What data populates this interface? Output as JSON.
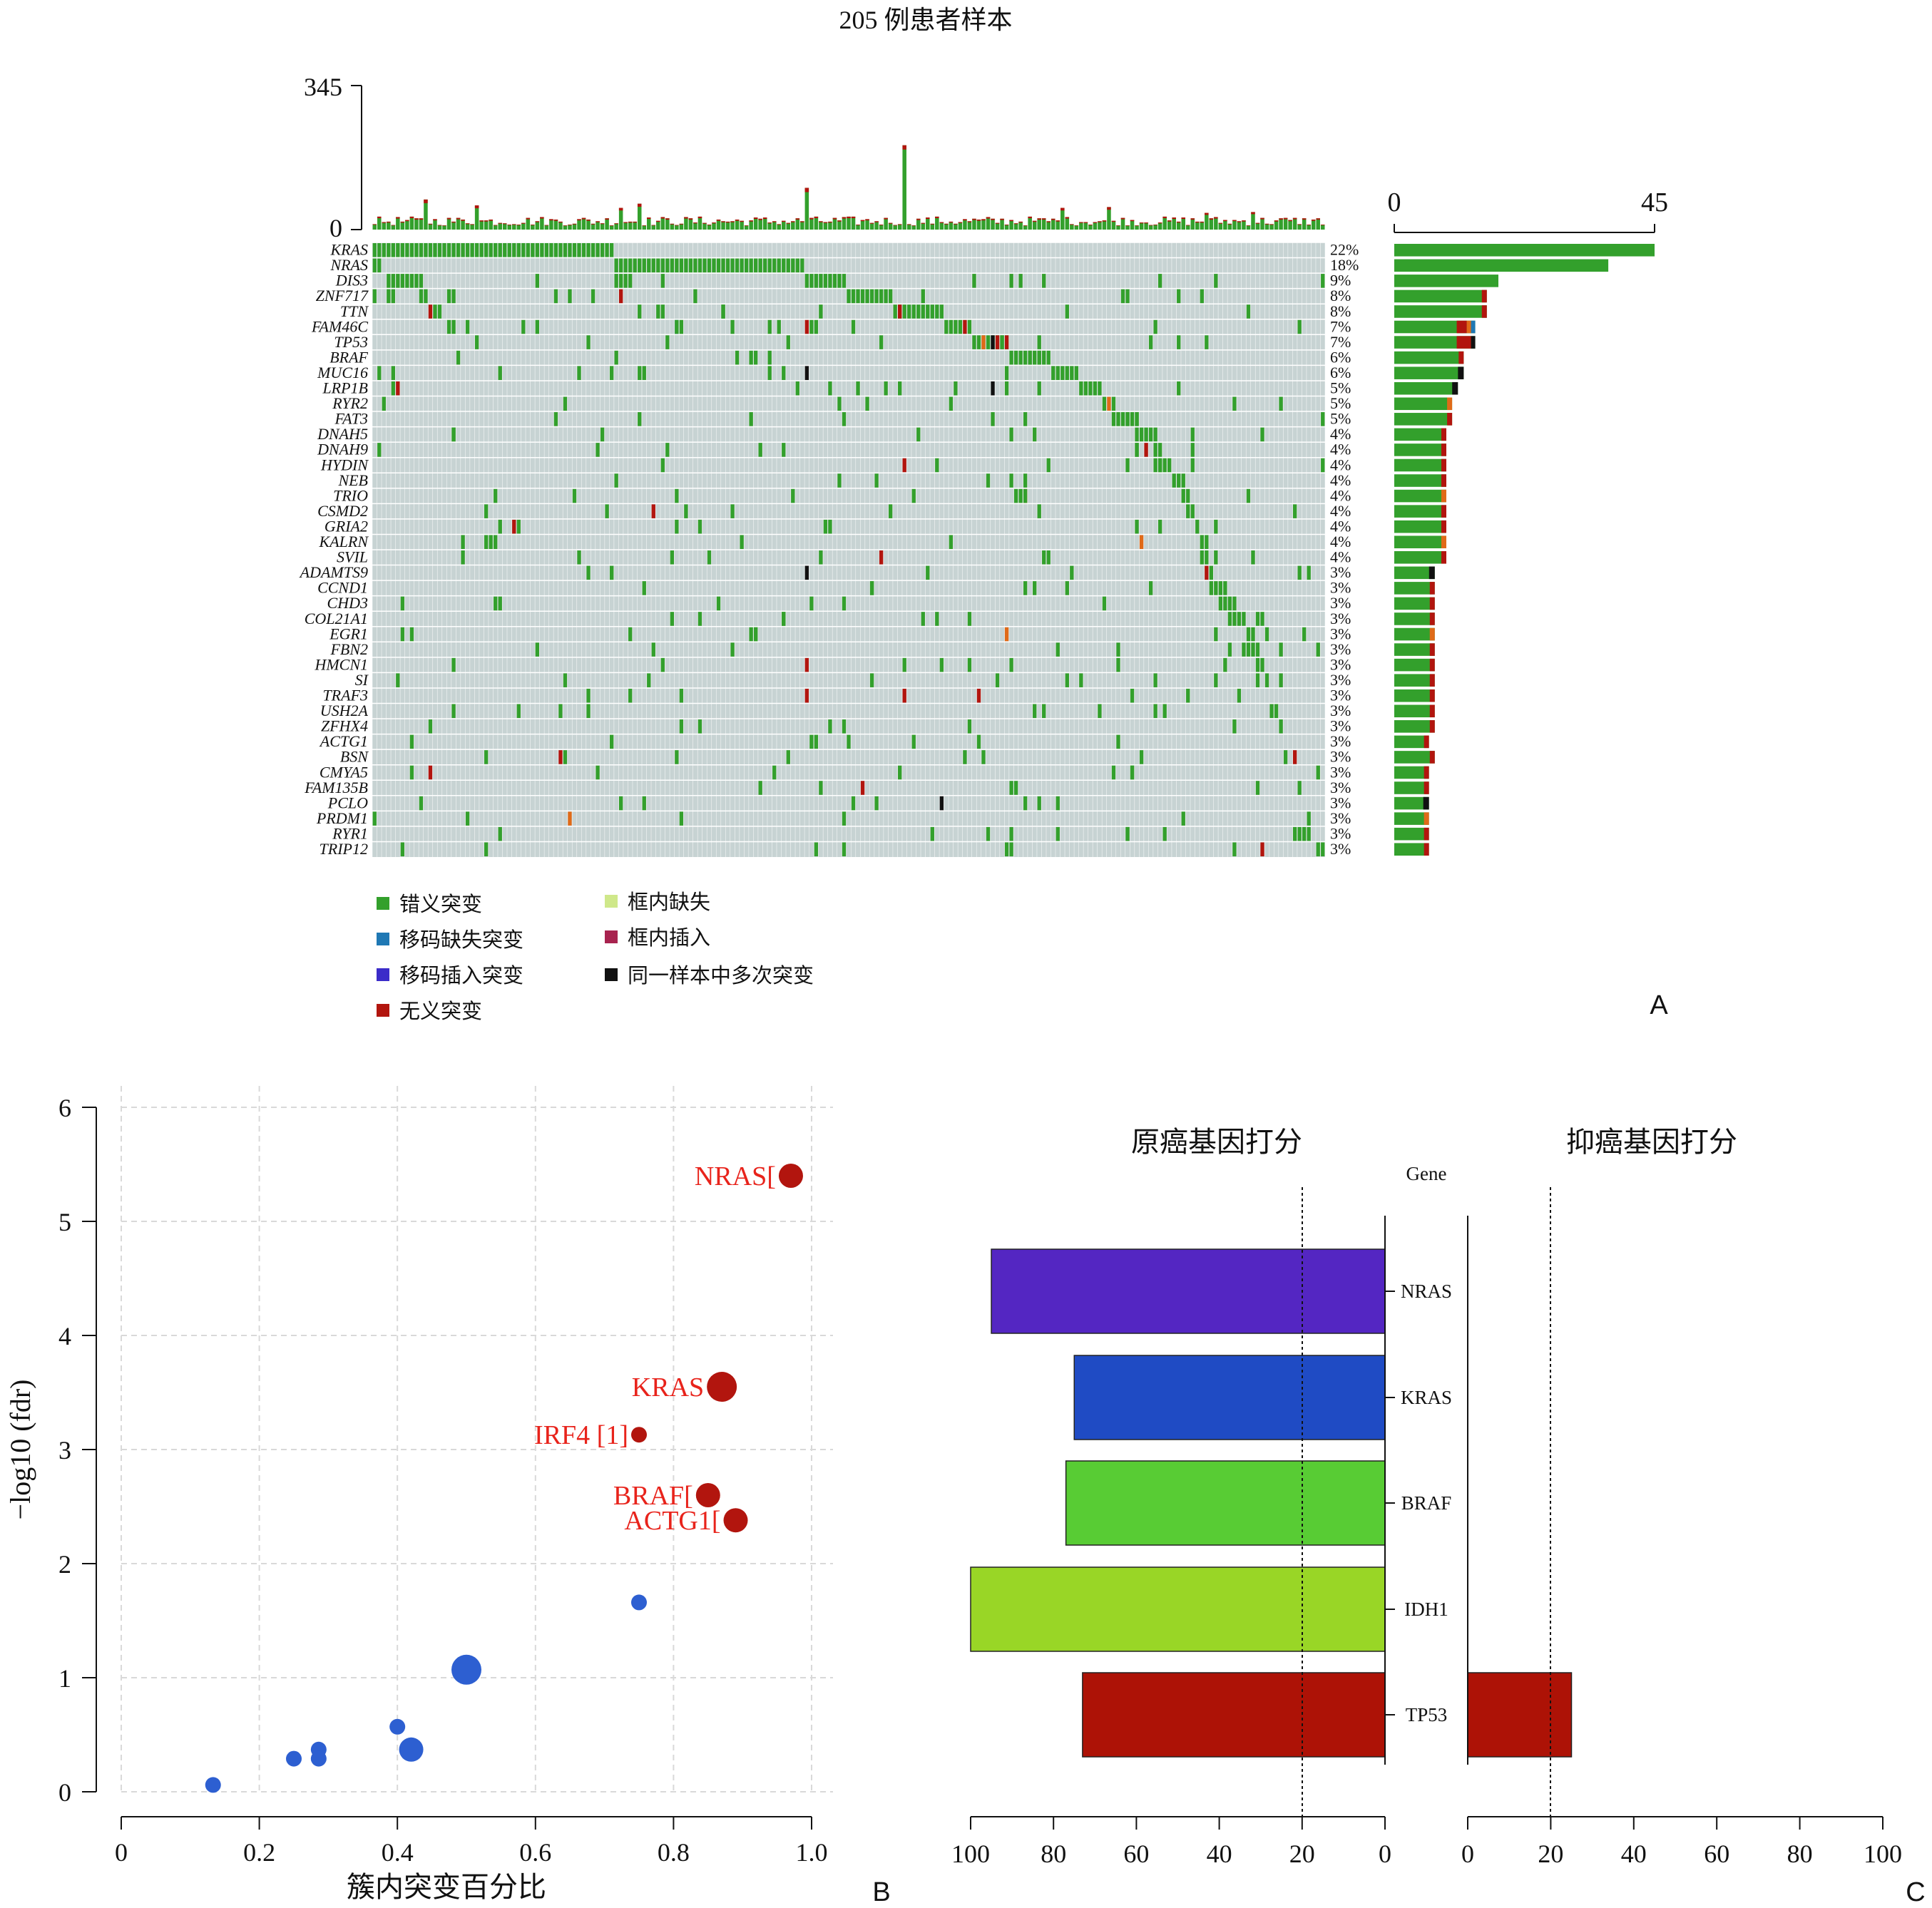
{
  "panel_a": {
    "title": "205 例患者样本",
    "panel_label": "A",
    "top_axis": {
      "max_label": "345",
      "min_label": "0"
    },
    "right_axis": {
      "min_label": "0",
      "max_label": "45"
    },
    "legend": [
      {
        "label": "错义突变",
        "color": "#33a02c"
      },
      {
        "label": "移码缺失突变",
        "color": "#1f78b4"
      },
      {
        "label": "移码插入突变",
        "color": "#3b2cc9"
      },
      {
        "label": "无义突变",
        "color": "#b2150e"
      },
      {
        "label": "框内缺失",
        "color": "#cfe88a"
      },
      {
        "label": "框内插入",
        "color": "#a8234f"
      },
      {
        "label": "同一样本中多次突变",
        "color": "#111111"
      }
    ]
  },
  "panel_b": {
    "panel_label": "B",
    "xlabel": "簇内突变百分比",
    "ylabel": "−log10 (fdr)",
    "xticks": [
      "0",
      "0.2",
      "0.4",
      "0.6",
      "0.8",
      "1.0"
    ],
    "yticks": [
      "0",
      "1",
      "2",
      "3",
      "4",
      "5",
      "6"
    ]
  },
  "panel_c": {
    "panel_label": "C",
    "left_title": "原癌基因打分",
    "right_title": "抑癌基因打分",
    "gene_header": "Gene",
    "left_ticks": [
      "100",
      "80",
      "60",
      "40",
      "20",
      "0"
    ],
    "right_ticks": [
      "0",
      "20",
      "40",
      "60",
      "80",
      "100"
    ]
  },
  "chart_data": [
    {
      "type": "heatmap",
      "title": "205 例患者样本",
      "samples": 205,
      "genes": [
        "KRAS",
        "NRAS",
        "DIS3",
        "ZNF717",
        "TTN",
        "FAM46C",
        "TP53",
        "BRAF",
        "MUC16",
        "LRP1B",
        "RYR2",
        "FAT3",
        "DNAH5",
        "DNAH9",
        "HYDIN",
        "NEB",
        "TRIO",
        "CSMD2",
        "GRIA2",
        "KALRN",
        "SVIL",
        "ADAMTS9",
        "CCND1",
        "CHD3",
        "COL21A1",
        "EGR1",
        "FBN2",
        "HMCN1",
        "SI",
        "TRAF3",
        "USH2A",
        "ZFHX4",
        "ACTG1",
        "BSN",
        "CMYA5",
        "FAM135B",
        "PCLO",
        "PRDM1",
        "RYR1",
        "TRIP12"
      ],
      "percent_labels": [
        "22%",
        "18%",
        "9%",
        "8%",
        "8%",
        "7%",
        "7%",
        "6%",
        "6%",
        "5%",
        "5%",
        "5%",
        "4%",
        "4%",
        "4%",
        "4%",
        "4%",
        "4%",
        "4%",
        "4%",
        "4%",
        "3%",
        "3%",
        "3%",
        "3%",
        "3%",
        "3%",
        "3%",
        "3%",
        "3%",
        "3%",
        "3%",
        "3%",
        "3%",
        "3%",
        "3%",
        "3%",
        "3%",
        "3%",
        "3%"
      ],
      "gene_counts": [
        45,
        37,
        18,
        16,
        16,
        14,
        14,
        12,
        12,
        11,
        10,
        10,
        9,
        9,
        9,
        9,
        9,
        9,
        9,
        9,
        9,
        7,
        7,
        7,
        7,
        7,
        7,
        7,
        7,
        7,
        7,
        7,
        6,
        7,
        6,
        6,
        6,
        6,
        6,
        6
      ],
      "gene_count_axis": [
        0,
        45
      ],
      "tmb_axis": [
        0,
        345
      ]
    },
    {
      "type": "scatter",
      "xlabel": "簇内突变百分比",
      "ylabel": "−log10 (fdr)",
      "xlim": [
        0,
        1.0
      ],
      "ylim": [
        0,
        6
      ],
      "grid": true,
      "points": [
        {
          "x": 0.97,
          "y": 5.4,
          "size": 3,
          "color": "#b2150e",
          "label": "NRAS["
        },
        {
          "x": 0.87,
          "y": 3.55,
          "size": 4,
          "color": "#b2150e",
          "label": "KRAS"
        },
        {
          "x": 0.75,
          "y": 3.13,
          "size": 1,
          "color": "#b2150e",
          "label": "IRF4 [1]"
        },
        {
          "x": 0.85,
          "y": 2.6,
          "size": 3,
          "color": "#b2150e",
          "label": "BRAF["
        },
        {
          "x": 0.89,
          "y": 2.38,
          "size": 3,
          "color": "#b2150e",
          "label": "ACTG1["
        },
        {
          "x": 0.75,
          "y": 1.66,
          "size": 1,
          "color": "#2d5fd1",
          "label": ""
        },
        {
          "x": 0.5,
          "y": 1.07,
          "size": 4,
          "color": "#2d5fd1",
          "label": ""
        },
        {
          "x": 0.4,
          "y": 0.57,
          "size": 1,
          "color": "#2d5fd1",
          "label": ""
        },
        {
          "x": 0.42,
          "y": 0.37,
          "size": 3,
          "color": "#2d5fd1",
          "label": ""
        },
        {
          "x": 0.286,
          "y": 0.37,
          "size": 1,
          "color": "#2d5fd1",
          "label": ""
        },
        {
          "x": 0.286,
          "y": 0.29,
          "size": 1,
          "color": "#2d5fd1",
          "label": ""
        },
        {
          "x": 0.25,
          "y": 0.29,
          "size": 1,
          "color": "#2d5fd1",
          "label": ""
        },
        {
          "x": 0.133,
          "y": 0.06,
          "size": 1,
          "color": "#2d5fd1",
          "label": ""
        }
      ]
    },
    {
      "type": "bar",
      "orientation": "horizontal",
      "categories": [
        "NRAS",
        "KRAS",
        "BRAF",
        "IDH1",
        "TP53"
      ],
      "series": [
        {
          "name": "原癌基因打分",
          "values": [
            95,
            75,
            77,
            100,
            73
          ],
          "colors": [
            "#5426c2",
            "#1f4bc4",
            "#58cc34",
            "#99d626",
            "#ad1206"
          ],
          "xlim": [
            0,
            100
          ],
          "reversed": true,
          "threshold": 20
        },
        {
          "name": "抑癌基因打分",
          "values": [
            0,
            0,
            0,
            0,
            25
          ],
          "colors": [
            "#5426c2",
            "#1f4bc4",
            "#58cc34",
            "#99d626",
            "#ad1206"
          ],
          "xlim": [
            0,
            100
          ],
          "threshold": 20
        }
      ]
    }
  ]
}
